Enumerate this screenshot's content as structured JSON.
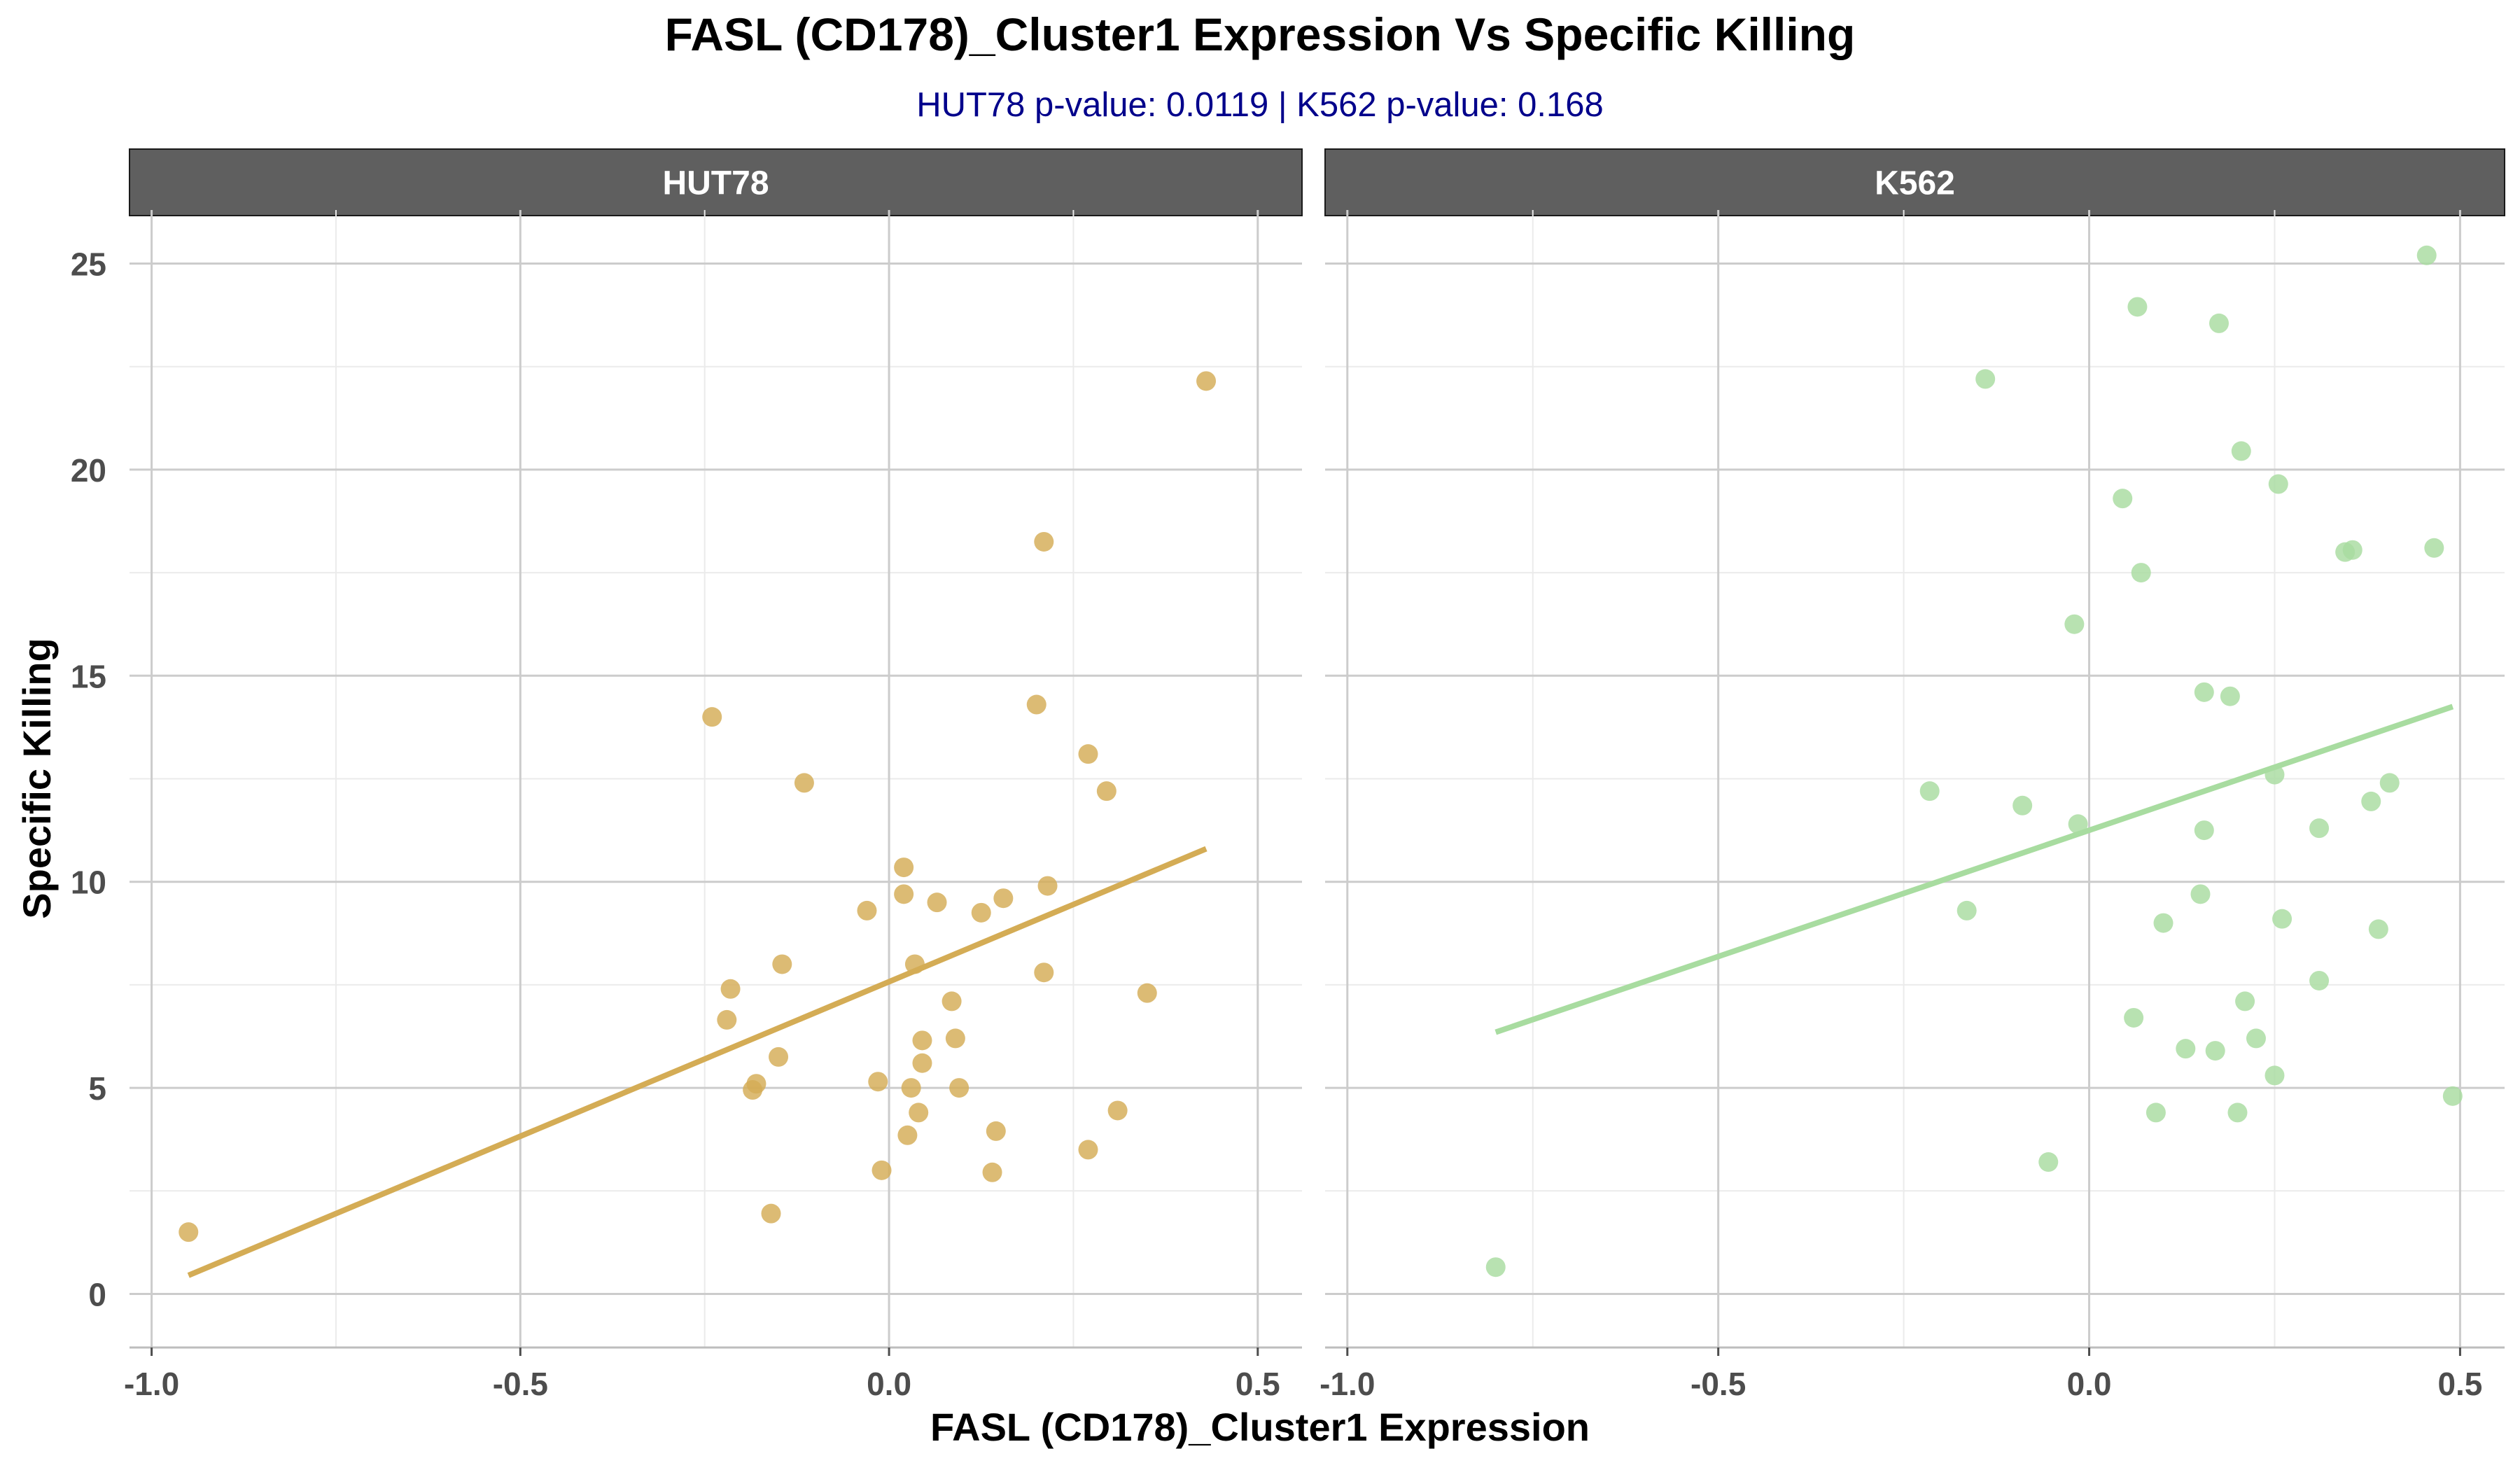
{
  "chart_data": {
    "type": "scatter",
    "title": "FASL (CD178)_Cluster1 Expression Vs Specific Killing",
    "subtitle": "HUT78 p-value: 0.0119  | K562 p-value: 0.168",
    "xlabel": "FASL (CD178)_Cluster1 Expression",
    "ylabel": "Specific Killing",
    "xlim": [
      -1.03,
      0.56
    ],
    "ylim": [
      -1.3,
      26.3
    ],
    "x_ticks": [
      -1.0,
      -0.5,
      0.0,
      0.5
    ],
    "x_tick_labels": [
      "-1.0",
      "-0.5",
      "0.0",
      "0.5"
    ],
    "y_ticks": [
      0,
      5,
      10,
      15,
      20,
      25
    ],
    "y_tick_labels": [
      "0",
      "5",
      "10",
      "15",
      "20",
      "25"
    ],
    "grid": true,
    "legend": "none",
    "colors": {
      "title": "#000000",
      "subtitle": "#00008B",
      "strip_bg": "#5F5F5F",
      "strip_text": "#FFFFFF",
      "grid_major": "#CCCCCC",
      "grid_minor": "#EBEBEB",
      "axis_text": "#4D4D4D"
    },
    "panels": [
      {
        "name": "HUT78",
        "color": "#D4AC55",
        "trend": {
          "x": [
            -0.95,
            0.43
          ],
          "y": [
            0.45,
            10.8
          ]
        },
        "points": [
          [
            -0.95,
            1.5
          ],
          [
            -0.24,
            14.0
          ],
          [
            -0.22,
            6.65
          ],
          [
            -0.215,
            7.4
          ],
          [
            -0.185,
            4.95
          ],
          [
            -0.18,
            5.1
          ],
          [
            -0.16,
            1.95
          ],
          [
            -0.15,
            5.75
          ],
          [
            -0.145,
            8.0
          ],
          [
            -0.115,
            12.4
          ],
          [
            -0.03,
            9.3
          ],
          [
            -0.015,
            5.15
          ],
          [
            -0.01,
            3.0
          ],
          [
            0.02,
            9.7
          ],
          [
            0.02,
            10.35
          ],
          [
            0.025,
            3.85
          ],
          [
            0.03,
            5.0
          ],
          [
            0.035,
            8.0
          ],
          [
            0.04,
            4.4
          ],
          [
            0.045,
            6.15
          ],
          [
            0.045,
            5.6
          ],
          [
            0.065,
            9.5
          ],
          [
            0.085,
            7.1
          ],
          [
            0.09,
            6.2
          ],
          [
            0.095,
            5.0
          ],
          [
            0.125,
            9.25
          ],
          [
            0.14,
            2.95
          ],
          [
            0.145,
            3.95
          ],
          [
            0.155,
            9.6
          ],
          [
            0.2,
            14.3
          ],
          [
            0.21,
            18.25
          ],
          [
            0.21,
            7.8
          ],
          [
            0.215,
            9.9
          ],
          [
            0.27,
            13.1
          ],
          [
            0.27,
            3.5
          ],
          [
            0.295,
            12.2
          ],
          [
            0.31,
            4.45
          ],
          [
            0.35,
            7.3
          ],
          [
            0.43,
            22.15
          ]
        ]
      },
      {
        "name": "K562",
        "color": "#A8DCA0",
        "trend": {
          "x": [
            -0.8,
            0.49
          ],
          "y": [
            6.35,
            14.25
          ]
        },
        "points": [
          [
            -0.8,
            0.65
          ],
          [
            -0.215,
            12.2
          ],
          [
            -0.165,
            9.3
          ],
          [
            -0.14,
            22.2
          ],
          [
            -0.09,
            11.85
          ],
          [
            -0.055,
            3.2
          ],
          [
            -0.02,
            16.25
          ],
          [
            -0.015,
            11.4
          ],
          [
            0.045,
            19.3
          ],
          [
            0.06,
            6.7
          ],
          [
            0.065,
            23.95
          ],
          [
            0.07,
            17.5
          ],
          [
            0.09,
            4.4
          ],
          [
            0.1,
            9.0
          ],
          [
            0.13,
            5.95
          ],
          [
            0.15,
            9.7
          ],
          [
            0.155,
            11.25
          ],
          [
            0.155,
            14.6
          ],
          [
            0.17,
            5.9
          ],
          [
            0.175,
            23.55
          ],
          [
            0.19,
            14.5
          ],
          [
            0.2,
            4.4
          ],
          [
            0.205,
            20.45
          ],
          [
            0.21,
            7.1
          ],
          [
            0.225,
            6.2
          ],
          [
            0.25,
            5.3
          ],
          [
            0.25,
            12.6
          ],
          [
            0.255,
            19.65
          ],
          [
            0.26,
            9.1
          ],
          [
            0.31,
            11.3
          ],
          [
            0.31,
            7.6
          ],
          [
            0.345,
            18.0
          ],
          [
            0.355,
            18.05
          ],
          [
            0.38,
            11.95
          ],
          [
            0.39,
            8.85
          ],
          [
            0.405,
            12.4
          ],
          [
            0.455,
            25.2
          ],
          [
            0.465,
            18.1
          ],
          [
            0.49,
            4.8
          ]
        ]
      }
    ]
  }
}
